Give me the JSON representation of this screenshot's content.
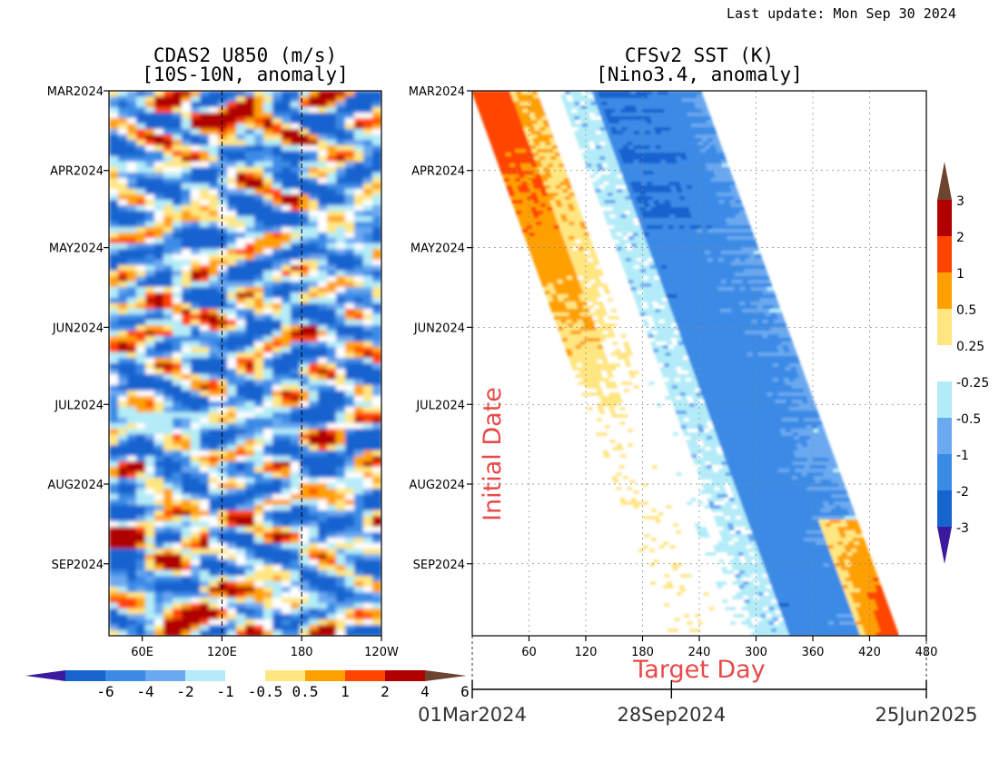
{
  "header": {
    "last_update": "Last update: Mon Sep 30 2024"
  },
  "colors": {
    "u850_levels": [
      "#3c1a9e",
      "#1764cf",
      "#3b8be6",
      "#6aa8f0",
      "#b3ecf8",
      "#ffffff",
      "#ffe680",
      "#ffa000",
      "#ff4500",
      "#b00000",
      "#6e4431"
    ],
    "sst_levels": [
      "#3c1a9e",
      "#1764cf",
      "#3b8be6",
      "#6aa8f0",
      "#b3ecf8",
      "#ffffff",
      "#ffe680",
      "#ffa000",
      "#ff4500",
      "#b00000",
      "#6e4431"
    ],
    "annotation_red": "#e84a4a"
  },
  "chart_data": [
    {
      "type": "heatmap",
      "title": "CDAS2 U850 (m/s)",
      "subtitle": "[10S-10N, anomaly]",
      "xlabel": "",
      "ylabel": "",
      "x_ticks": [
        "60E",
        "120E",
        "180",
        "120W"
      ],
      "x_tick_values": [
        60,
        120,
        180,
        240
      ],
      "xlim": [
        35,
        240
      ],
      "y_ticks": [
        "MAR2024",
        "APR2024",
        "MAY2024",
        "JUN2024",
        "JUL2024",
        "AUG2024",
        "SEP2024"
      ],
      "y_tick_days": [
        0,
        31,
        61,
        92,
        122,
        153,
        184
      ],
      "ylim_days": [
        0,
        212
      ],
      "reference_lines_x": [
        120,
        180
      ],
      "colorbar_levels": [
        "-6",
        "-4",
        "-2",
        "-1",
        "-0.5",
        "0.5",
        "1",
        "2",
        "4",
        "6"
      ],
      "colorbar_orientation": "horizontal-bottom"
    },
    {
      "type": "heatmap",
      "title": "CFSv2 SST (K)",
      "subtitle": "[Nino3.4, anomaly]",
      "xlabel": "Target Day",
      "ylabel": "Initial Date",
      "x_ticks": [
        "60",
        "120",
        "180",
        "240",
        "300",
        "360",
        "420",
        "480"
      ],
      "x_tick_values": [
        60,
        120,
        180,
        240,
        300,
        360,
        420,
        480
      ],
      "xlim": [
        0,
        480
      ],
      "y_ticks": [
        "MAR2024",
        "APR2024",
        "MAY2024",
        "JUN2024",
        "JUL2024",
        "AUG2024",
        "SEP2024"
      ],
      "y_tick_days": [
        0,
        31,
        61,
        92,
        122,
        153,
        184
      ],
      "ylim_days": [
        0,
        212
      ],
      "grid": true,
      "date_axis": {
        "labels": [
          "01Mar2024",
          "28Sep2024",
          "25Jun2025"
        ],
        "day_values": [
          0,
          211,
          481
        ]
      },
      "colorbar_levels": [
        "3",
        "2",
        "1",
        "0.5",
        "0.25",
        "-0.25",
        "-0.5",
        "-1",
        "-2",
        "-3"
      ],
      "colorbar_orientation": "vertical-right"
    }
  ]
}
